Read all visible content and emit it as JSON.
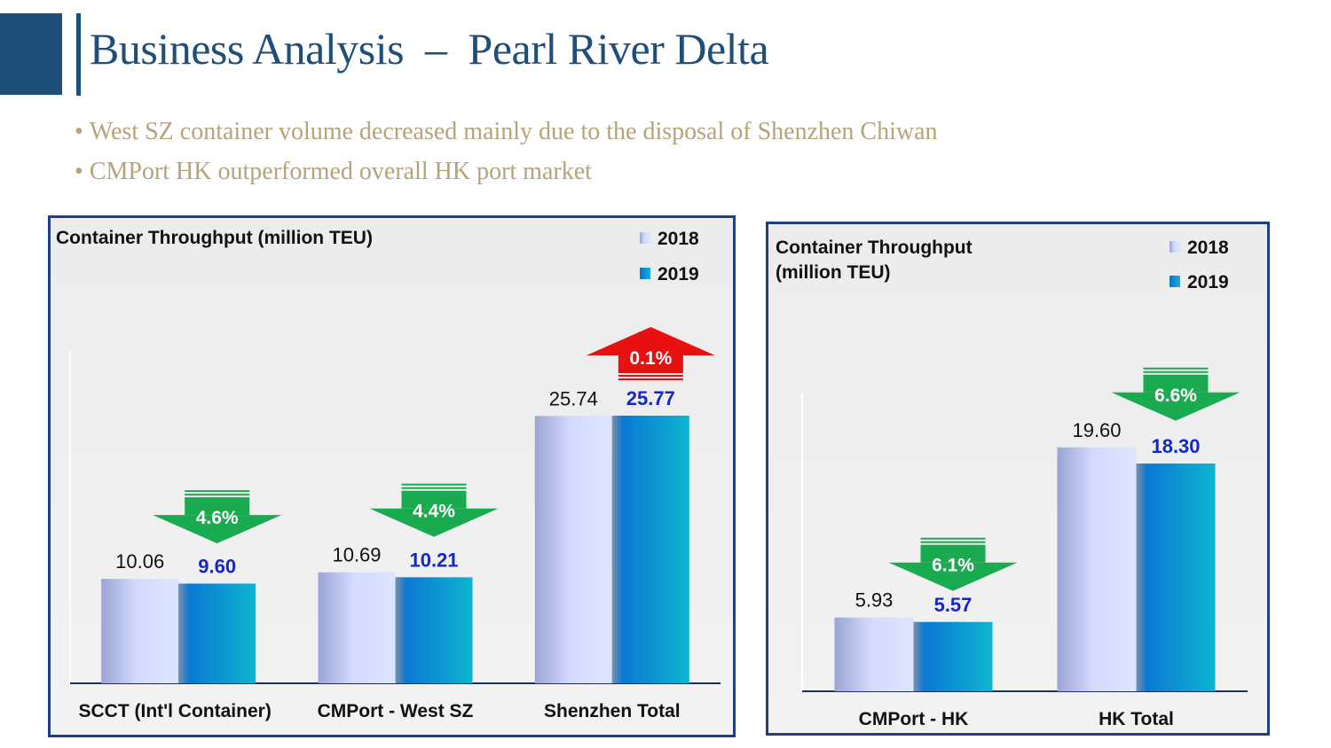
{
  "slide": {
    "title": "Business Analysis  –  Pearl River Delta",
    "bullets": [
      "West SZ container volume decreased mainly due to the disposal of Shenzhen Chiwan",
      "CMPort HK outperformed overall HK port market"
    ],
    "bullet_marker": "•"
  },
  "colors": {
    "accent": "#1f4e79",
    "title": "#1f4e79",
    "bullet_text": "#b5a37a",
    "series_2018": "#b8c2ec",
    "series_2019": "#0fb5d0",
    "label_2019": "#1428c8",
    "decrease_arrow": "#1aaa50",
    "increase_arrow": "#e81010",
    "frame": "#1f3f86"
  },
  "chart_data": [
    {
      "type": "bar",
      "title": "Container Throughput (million TEU)",
      "categories": [
        "SCCT (Int'l Container)",
        "CMPort - West SZ",
        "Shenzhen Total"
      ],
      "series": [
        {
          "name": "2018",
          "values": [
            10.06,
            10.69,
            25.74
          ],
          "labels": [
            "10.06",
            "10.69",
            "25.74"
          ]
        },
        {
          "name": "2019",
          "values": [
            9.6,
            10.21,
            25.77
          ],
          "labels": [
            "9.60",
            "10.21",
            "25.77"
          ]
        }
      ],
      "changes": [
        {
          "label": "4.6%",
          "direction": "down"
        },
        {
          "label": "4.4%",
          "direction": "down"
        },
        {
          "label": "0.1%",
          "direction": "up"
        }
      ],
      "legend": "top-right",
      "grid": false,
      "ylim": [
        0,
        32
      ]
    },
    {
      "type": "bar",
      "title": "Container Throughput\n(million TEU)",
      "categories": [
        "CMPort - HK",
        "HK Total"
      ],
      "series": [
        {
          "name": "2018",
          "values": [
            5.93,
            19.6
          ],
          "labels": [
            "5.93",
            "19.60"
          ]
        },
        {
          "name": "2019",
          "values": [
            5.57,
            18.3
          ],
          "labels": [
            "5.57",
            "18.30"
          ]
        }
      ],
      "changes": [
        {
          "label": "6.1%",
          "direction": "down"
        },
        {
          "label": "6.6%",
          "direction": "down"
        }
      ],
      "legend": "top-right",
      "grid": false,
      "ylim": [
        0,
        24
      ]
    }
  ]
}
